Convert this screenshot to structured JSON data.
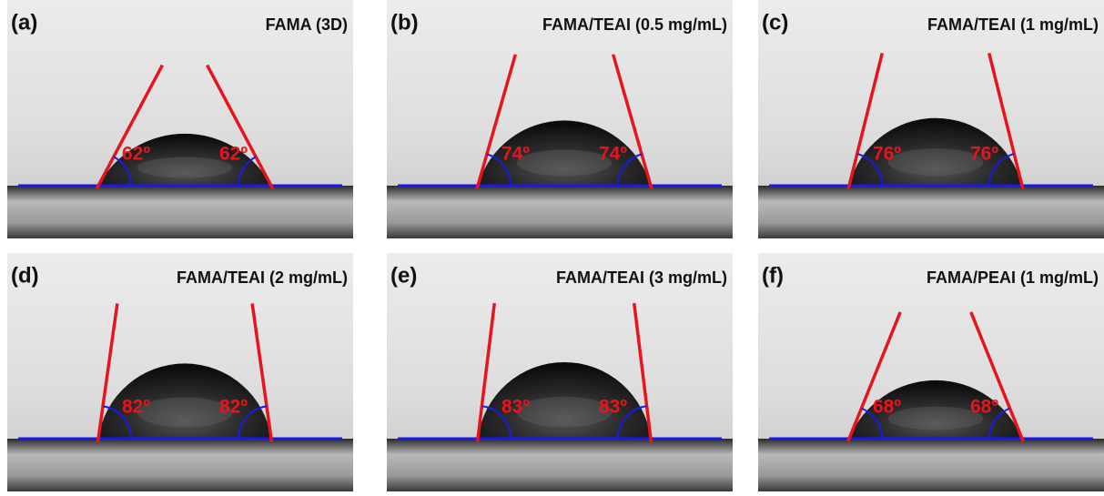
{
  "panels": [
    {
      "label": "(a)",
      "title": "FAMA (3D)",
      "angle_left": "62º",
      "angle_right": "62º"
    },
    {
      "label": "(b)",
      "title": "FAMA/TEAI (0.5 mg/mL)",
      "angle_left": "74º",
      "angle_right": "74º"
    },
    {
      "label": "(c)",
      "title": "FAMA/TEAI (1 mg/mL)",
      "angle_left": "76º",
      "angle_right": "76º"
    },
    {
      "label": "(d)",
      "title": "FAMA/TEAI (2 mg/mL)",
      "angle_left": "82º",
      "angle_right": "82º"
    },
    {
      "label": "(e)",
      "title": "FAMA/TEAI (3 mg/mL)",
      "angle_left": "83º",
      "angle_right": "83º"
    },
    {
      "label": "(f)",
      "title": "FAMA/PEAI (1 mg/mL)",
      "angle_left": "68º",
      "angle_right": "68º"
    }
  ]
}
